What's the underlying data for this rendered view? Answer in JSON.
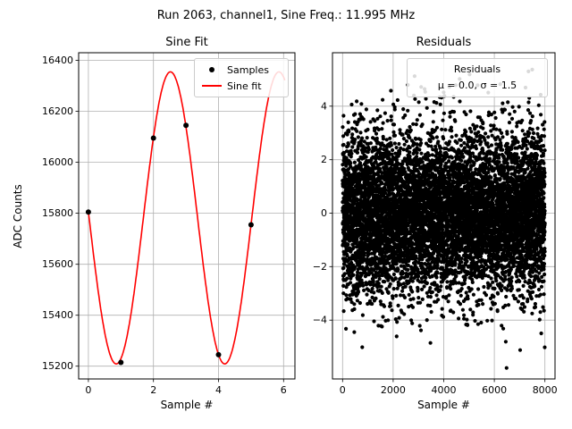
{
  "figure": {
    "title": "Run 2063, channel1, Sine Freq.: 11.995 MHz",
    "run": 2063,
    "channel": "channel1",
    "sine_freq_mhz": 11.995
  },
  "chart_data": [
    {
      "type": "scatter",
      "subtype": "scatter-with-fit-line",
      "title": "Sine Fit",
      "xlabel": "Sample #",
      "ylabel": "ADC Counts",
      "xlim": [
        -0.3,
        6.35
      ],
      "ylim": [
        15150,
        16430
      ],
      "xticks": [
        0,
        2,
        4,
        6
      ],
      "yticks": [
        15200,
        15400,
        15600,
        15800,
        16000,
        16200,
        16400
      ],
      "grid": true,
      "legend": {
        "position": "upper right",
        "entries": [
          {
            "label": "Samples",
            "marker": "dot",
            "color": "#000000"
          },
          {
            "label": "Sine fit",
            "marker": "line",
            "color": "#ff0000"
          }
        ]
      },
      "samples": {
        "x": [
          0,
          1,
          2,
          3,
          4,
          5
        ],
        "y": [
          15805,
          15215,
          16095,
          16145,
          15245,
          15755
        ]
      },
      "sine_fit": {
        "offset": 15782,
        "amplitude": 573,
        "period_samples": 3.335,
        "phase_rad": 3.1,
        "x_start": 0,
        "x_end": 6.05,
        "color": "#ff0000"
      }
    },
    {
      "type": "scatter",
      "title": "Residuals",
      "xlabel": "Sample #",
      "ylabel": "",
      "xlim": [
        -400,
        8400
      ],
      "ylim": [
        -6.2,
        6.0
      ],
      "xticks": [
        0,
        2000,
        4000,
        6000,
        8000
      ],
      "yticks": [
        -4,
        -2,
        0,
        2,
        4
      ],
      "grid": true,
      "legend": {
        "position": "upper right",
        "lines": [
          "Residuals",
          "μ = 0.0, σ = 1.5"
        ]
      },
      "points": {
        "n": 8000,
        "mu": 0.0,
        "sigma": 1.5,
        "color": "#000000"
      }
    }
  ]
}
